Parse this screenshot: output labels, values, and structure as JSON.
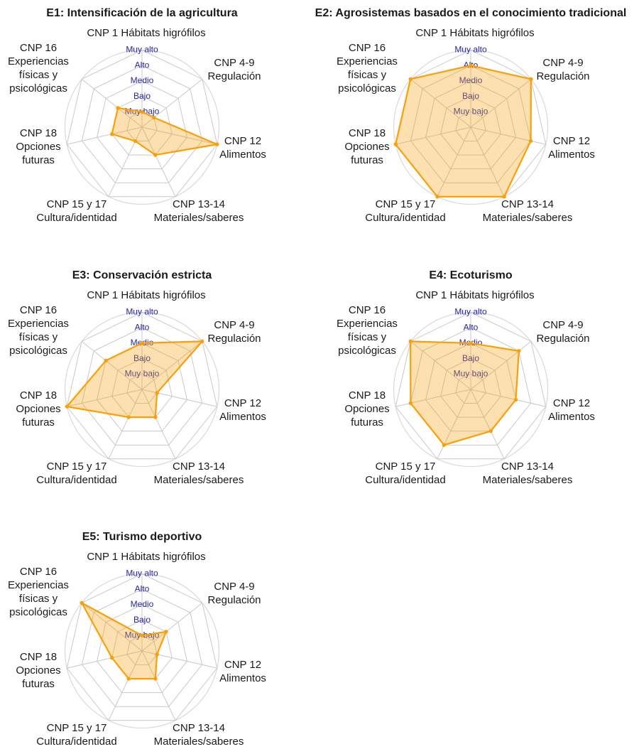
{
  "figure": {
    "kind": "radar-small-multiples",
    "background": "#ffffff",
    "panel_titles": [
      "E1: Intensificación de la agricultura",
      "E2: Agrosistemas basados en el conocimiento tradicional",
      "E3: Conservación estricta",
      "E4: Ecoturismo",
      "E5: Turismo deportivo"
    ]
  },
  "axes": [
    {
      "key": "cnp1",
      "label_lines": [
        "CNP 1 Hábitats higrófilos"
      ]
    },
    {
      "key": "cnp4-9",
      "label_lines": [
        "CNP 4-9",
        "Regulación"
      ]
    },
    {
      "key": "cnp12",
      "label_lines": [
        "CNP 12",
        "Alimentos"
      ]
    },
    {
      "key": "cnp13-14",
      "label_lines": [
        "CNP 13-14",
        "Materiales/saberes"
      ]
    },
    {
      "key": "cnp15-17",
      "label_lines": [
        "CNP 15 y 17",
        "Cultura/identidad"
      ]
    },
    {
      "key": "cnp18",
      "label_lines": [
        "CNP 18",
        "Opciones",
        "futuras"
      ]
    },
    {
      "key": "cnp16",
      "label_lines": [
        "CNP 16",
        "Experiencias",
        "físicas  y",
        "psicológicas"
      ]
    }
  ],
  "chart_data": {
    "type": "radar",
    "categories": [
      "CNP 1 Hábitats higrófilos",
      "CNP 4-9 Regulación",
      "CNP 12 Alimentos",
      "CNP 13-14 Materiales/saberes",
      "CNP 15 y 17 Cultura/identidad",
      "CNP 18 Opciones futuras",
      "CNP 16 Experiencias físicas y psicológicas"
    ],
    "scale_range": [
      0,
      5
    ],
    "ring_labels_outer_to_inner": [
      "Muy alto",
      "Alto",
      "Medio",
      "Bajo",
      "Muy bajo"
    ],
    "ring_values_outer_to_inner": [
      5,
      4,
      3,
      2,
      1
    ],
    "grid": true,
    "legend": "none",
    "series": [
      {
        "name": "E1: Intensificación de la agricultura",
        "values": [
          1,
          1,
          5,
          2,
          1,
          2,
          2
        ]
      },
      {
        "name": "E2: Agrosistemas basados en el conocimiento tradicional",
        "values": [
          4,
          5,
          4,
          5,
          5,
          5,
          5
        ]
      },
      {
        "name": "E3: Conservación estricta",
        "values": [
          3,
          5,
          1,
          2,
          2,
          5,
          3
        ]
      },
      {
        "name": "E4: Ecoturismo",
        "values": [
          3,
          4,
          3,
          3,
          4,
          4,
          5
        ]
      },
      {
        "name": "E5: Turismo deportivo",
        "values": [
          1,
          2,
          1,
          2,
          2,
          2,
          5
        ]
      }
    ]
  },
  "style": {
    "series_stroke": "#f9a008",
    "series_fill": "rgba(249,160,8,0.32)",
    "grid_color": "#c9c9c9",
    "outer_circle_color": "#d9d9d9",
    "ring_label_color": "#2525a8",
    "axis_label_color": "#1a1a1a",
    "title_color": "#1a1a1a"
  }
}
